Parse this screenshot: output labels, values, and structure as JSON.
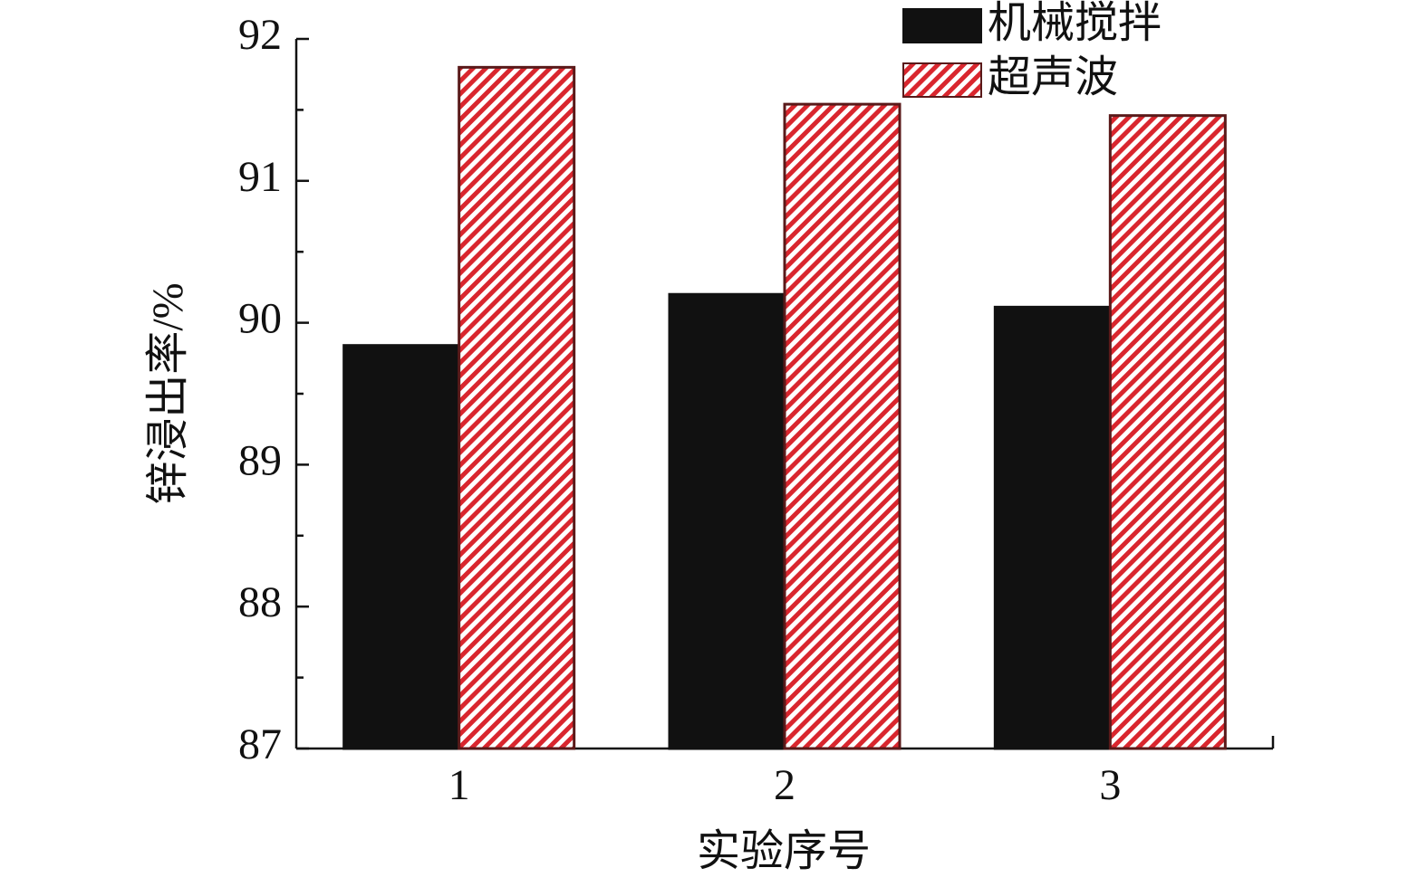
{
  "chart_data": {
    "type": "bar",
    "y_label": "锌浸出率/%",
    "x_label": "实验序号",
    "categories": [
      "1",
      "2",
      "3"
    ],
    "series": [
      {
        "name": "机械搅拌",
        "color": "#111111",
        "values": [
          89.84,
          90.2,
          90.11
        ]
      },
      {
        "name": "超声波",
        "color": "#d9262e",
        "hatch": true,
        "values": [
          91.8,
          91.54,
          91.46
        ]
      }
    ],
    "ylim": [
      87,
      92
    ],
    "yticks": [
      87,
      88,
      89,
      90,
      91,
      92
    ],
    "legend": "upper right"
  }
}
